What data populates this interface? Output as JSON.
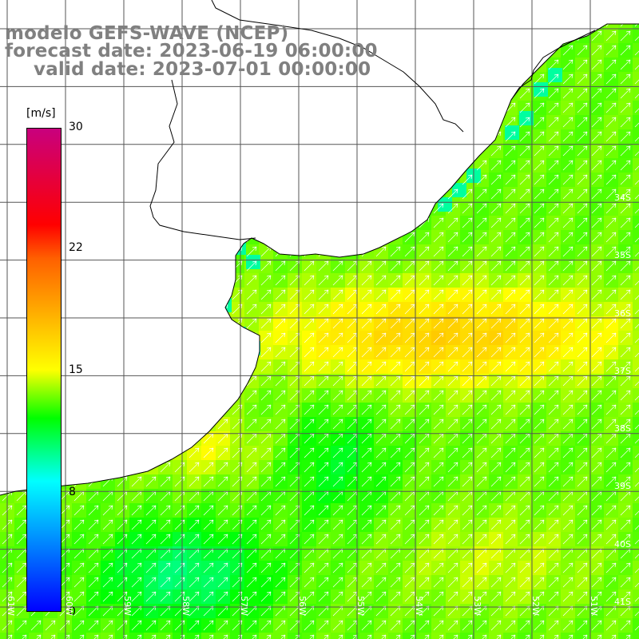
{
  "title": {
    "line1": "modelo GEFS-WAVE (NCEP)",
    "line2": "forecast date: 2023-06-19 06:00:00",
    "line3": "valid date: 2023-07-01 00:00:00"
  },
  "colorbar": {
    "unit": "[m/s]",
    "min": 0,
    "max": 30,
    "ticks": [
      "30",
      "22",
      "15",
      "8",
      "0"
    ],
    "tick_values": [
      30,
      22,
      15,
      8,
      0
    ],
    "colors": [
      "#0000ff",
      "#00ffff",
      "#00ff00",
      "#ffff00",
      "#ff0000",
      "#c8007f"
    ]
  },
  "map": {
    "variable": "wind speed",
    "lat_labels": [
      "34S",
      "35S",
      "36S",
      "37S",
      "38S",
      "39S",
      "40S",
      "41S"
    ],
    "lon_labels": [
      "61W",
      "60W",
      "59W",
      "58W",
      "57W",
      "56W",
      "55W",
      "54W",
      "53W",
      "52W",
      "51W"
    ],
    "ocean_color": "#a8f028",
    "land_color": "#ffffff",
    "grid_color": "#555555",
    "coast_color": "#000000",
    "arrow_color": "#ffffff",
    "wind_direction_toward": "north-east"
  }
}
